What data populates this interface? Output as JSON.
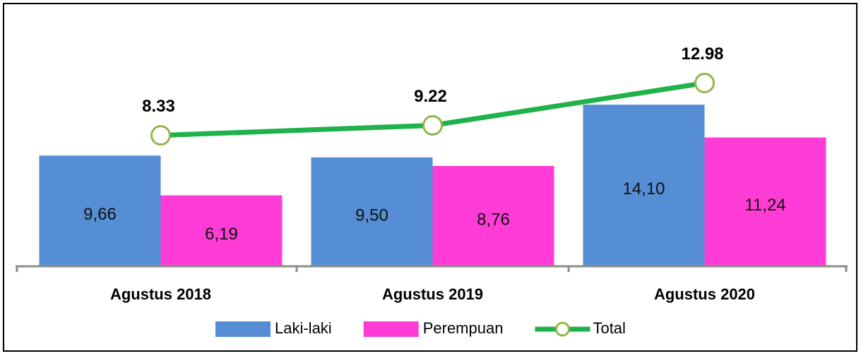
{
  "chart_data": {
    "type": "bar_line",
    "categories": [
      "Agustus 2018",
      "Agustus 2019",
      "Agustus 2020"
    ],
    "series": [
      {
        "name": "Laki-laki",
        "color": "#558ed5",
        "type": "bar",
        "values": [
          9.66,
          9.5,
          14.1
        ],
        "value_labels": [
          "9,66",
          "9,50",
          "14,10"
        ]
      },
      {
        "name": "Perempuan",
        "color": "#ff3dd6",
        "type": "bar",
        "values": [
          6.19,
          8.76,
          11.24
        ],
        "value_labels": [
          "6,19",
          "8,76",
          "11,24"
        ]
      },
      {
        "name": "Total",
        "color": "#1fb24a",
        "type": "line",
        "axis": "y2",
        "values": [
          8.33,
          9.22,
          12.98
        ]
      }
    ],
    "ylim": [
      0,
      22
    ],
    "y2lim": [
      -3.3,
      19.1
    ],
    "legend": "bottom"
  }
}
